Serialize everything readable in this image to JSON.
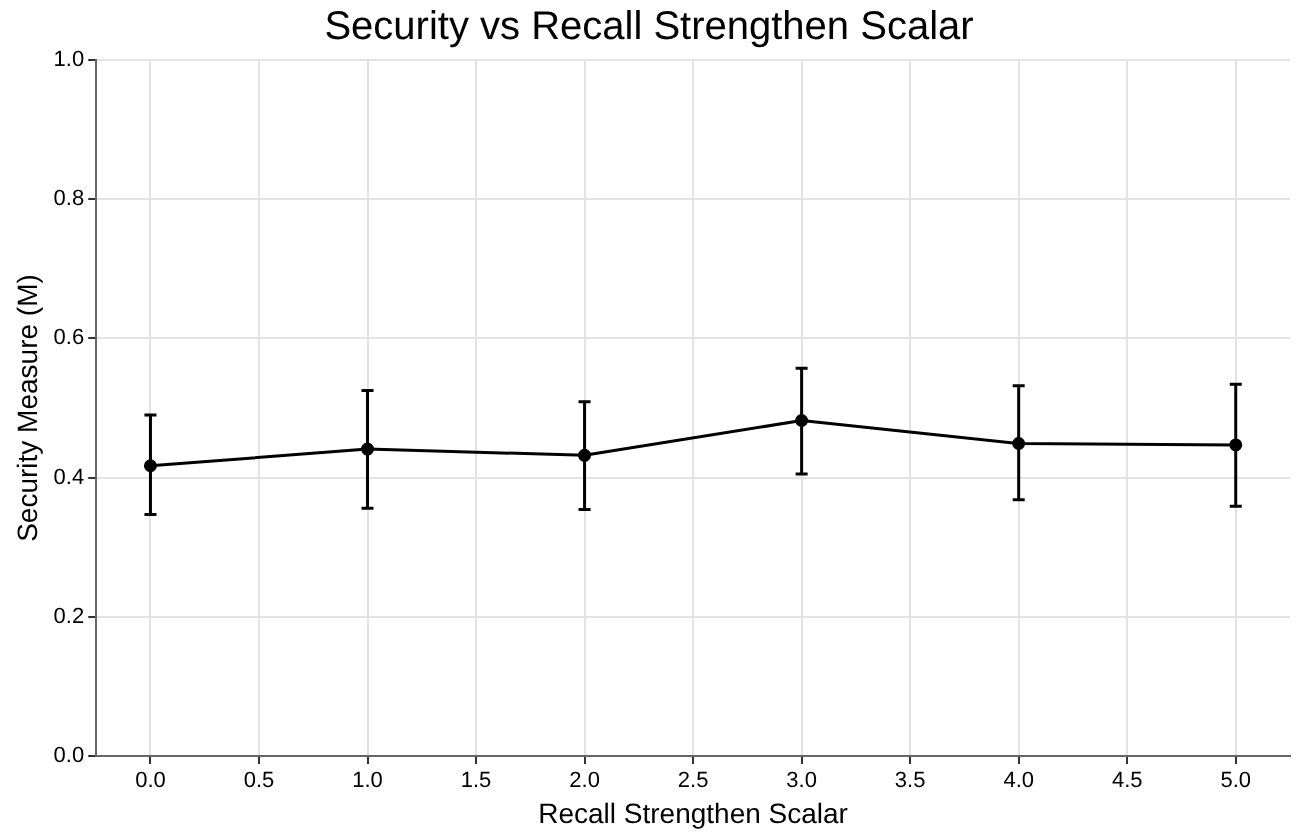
{
  "chart_data": {
    "type": "line",
    "title": "Security vs Recall Strengthen Scalar",
    "xlabel": "Recall Strengthen Scalar",
    "ylabel": "Security Measure (M)",
    "x": [
      0,
      1,
      2,
      3,
      4,
      5
    ],
    "series": [
      {
        "color": "#000000",
        "values": [
          0.417,
          0.441,
          0.432,
          0.482,
          0.449,
          0.447
        ],
        "errors": [
          [
            0.347,
            0.49
          ],
          [
            0.356,
            0.525
          ],
          [
            0.354,
            0.509
          ],
          [
            0.405,
            0.557
          ],
          [
            0.368,
            0.532
          ],
          [
            0.359,
            0.534
          ]
        ]
      }
    ],
    "xlim": [
      -0.25,
      5.25
    ],
    "xticks": [
      {
        "value": 0,
        "label": "0.0"
      },
      {
        "value": 0.5,
        "label": "0.5"
      },
      {
        "value": 1,
        "label": "1.0"
      },
      {
        "value": 1.5,
        "label": "1.5"
      },
      {
        "value": 2,
        "label": "2.0"
      },
      {
        "value": 2.5,
        "label": "2.5"
      },
      {
        "value": 3,
        "label": "3.0"
      },
      {
        "value": 3.5,
        "label": "3.5"
      },
      {
        "value": 4,
        "label": "4.0"
      },
      {
        "value": 4.5,
        "label": "4.5"
      },
      {
        "value": 5,
        "label": "5.0"
      }
    ],
    "ylim": [
      0,
      1
    ],
    "yticks": [
      {
        "value": 0,
        "label": "0.0"
      },
      {
        "value": 0.2,
        "label": "0.2"
      },
      {
        "value": 0.4,
        "label": "0.4"
      },
      {
        "value": 0.6,
        "label": "0.6"
      },
      {
        "value": 0.8,
        "label": "0.8"
      },
      {
        "value": 1,
        "label": "1.0"
      }
    ],
    "grid": true,
    "marker": "circle",
    "line_style": "solid",
    "legend": false
  }
}
